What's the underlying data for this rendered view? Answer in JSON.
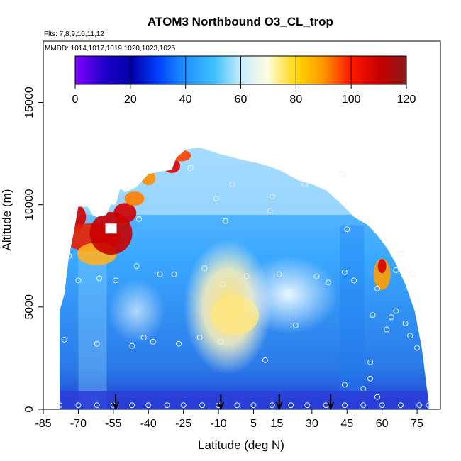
{
  "chart_data": {
    "type": "heatmap",
    "title": "ATOM3 Northbound O3_CL_trop",
    "subtitle_flights": "Flts: 7,8,9,10,11,12",
    "subtitle_dates": "MMDD: 1014,1017,1019,1020,1023,1025",
    "xlabel": "Latitude (deg N)",
    "ylabel": "Altitude (m)",
    "xlim": [
      -85,
      85
    ],
    "ylim": [
      0,
      18000
    ],
    "x_ticks": [
      -85,
      -70,
      -55,
      -40,
      -25,
      -10,
      5,
      15,
      30,
      45,
      60,
      75
    ],
    "y_ticks": [
      0,
      5000,
      10000,
      15000
    ],
    "colorbar": {
      "range": [
        0,
        120
      ],
      "ticks": [
        0,
        20,
        40,
        60,
        80,
        100,
        120
      ],
      "colors": [
        "#7f00ff",
        "#0000a8",
        "#0040ff",
        "#1e90ff",
        "#00bfff",
        "#e6f7ff",
        "#fff5b0",
        "#ffd700",
        "#ff8c00",
        "#ff0000",
        "#b00000",
        "#8b1a1a"
      ]
    },
    "flight_markers_lat": [
      -54,
      -9,
      16,
      38
    ],
    "sample_points": [
      [
        -78,
        5500
      ],
      [
        -76,
        3400
      ],
      [
        -74,
        7500
      ],
      [
        -70,
        6300
      ],
      [
        -62,
        3200
      ],
      [
        -61,
        6400
      ],
      [
        -54,
        6300
      ],
      [
        -47,
        3100
      ],
      [
        -45,
        7000
      ],
      [
        -44,
        9300
      ],
      [
        -42,
        3500
      ],
      [
        -38,
        3300
      ],
      [
        -35,
        6600
      ],
      [
        -29,
        6600
      ],
      [
        -27,
        3200
      ],
      [
        -22,
        11800
      ],
      [
        -18,
        3500
      ],
      [
        -16,
        6900
      ],
      [
        -11,
        10300
      ],
      [
        -9,
        3300
      ],
      [
        -8,
        6100
      ],
      [
        -7,
        9200
      ],
      [
        -4,
        11000
      ],
      [
        2,
        6500
      ],
      [
        10,
        2400
      ],
      [
        12,
        9700
      ],
      [
        13,
        10400
      ],
      [
        16,
        6600
      ],
      [
        19,
        5700
      ],
      [
        23,
        4100
      ],
      [
        27,
        11000
      ],
      [
        32,
        6500
      ],
      [
        37,
        6200
      ],
      [
        43,
        11500
      ],
      [
        44,
        6700
      ],
      [
        45,
        8800
      ],
      [
        48,
        6300
      ],
      [
        55,
        2300
      ],
      [
        56,
        4600
      ],
      [
        58,
        5900
      ],
      [
        62,
        3900
      ],
      [
        64,
        4500
      ],
      [
        66,
        4800
      ],
      [
        66,
        6800
      ],
      [
        68,
        7600
      ],
      [
        70,
        4200
      ],
      [
        72,
        3600
      ],
      [
        73,
        6600
      ],
      [
        75,
        3000
      ],
      [
        52,
        1000
      ],
      [
        58,
        600
      ],
      [
        55,
        1500
      ],
      [
        44,
        1200
      ]
    ],
    "surface_points_lat": [
      -78,
      -70,
      -62,
      -55,
      -47,
      -40,
      -32,
      -25,
      -17,
      -10,
      -2,
      5,
      13,
      21,
      28,
      36,
      44,
      52,
      60,
      68,
      76,
      80
    ]
  }
}
